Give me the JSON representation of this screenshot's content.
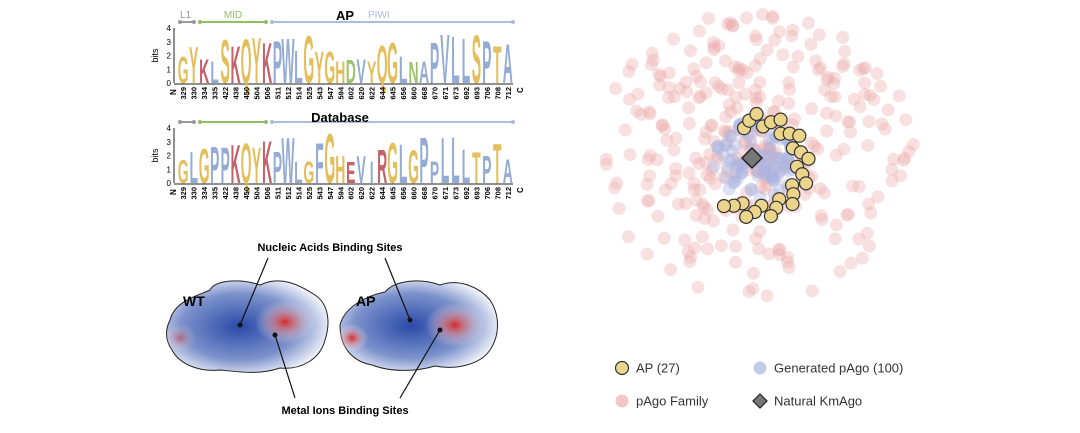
{
  "logos": {
    "y_label": "bits",
    "yticks": [
      0,
      1,
      2,
      3,
      4
    ],
    "n_term": "N",
    "c_term": "C",
    "positions": [
      329,
      330,
      334,
      335,
      422,
      438,
      450,
      504,
      506,
      511,
      512,
      514,
      525,
      543,
      547,
      594,
      602,
      620,
      622,
      644,
      645,
      656,
      660,
      668,
      670,
      671,
      673,
      692,
      693,
      706,
      708,
      712
    ],
    "domains": {
      "l1": "L1",
      "mid": "MID",
      "piwi": "PIWI"
    },
    "panels": [
      {
        "title": "AP",
        "letters": [
          "G",
          "Y",
          "K",
          "L",
          "S",
          "K",
          "Q",
          "Y",
          "K",
          "P",
          "W",
          "L",
          "G",
          "Y",
          "G",
          "H",
          "D",
          "V",
          "Y",
          "Q",
          "G",
          "L",
          "N",
          "A",
          "P",
          "V",
          "L",
          "L",
          "S",
          "P",
          "T",
          "A"
        ]
      },
      {
        "title": "Database",
        "letters": [
          "G",
          "L",
          "G",
          "P",
          "P",
          "K",
          "Q",
          "Y",
          "K",
          "P",
          "W",
          "L",
          "G",
          "F",
          "G",
          "H",
          "E",
          "V",
          "I",
          "R",
          "G",
          "L",
          "G",
          "P",
          "P",
          "L",
          "L",
          "L",
          "T",
          "P",
          "T",
          "A"
        ]
      }
    ]
  },
  "structures": {
    "labels": [
      "WT",
      "AP"
    ],
    "nucleic": "Nucleic Acids Binding Sites",
    "metal": "Metal Ions Binding Sites"
  },
  "legend": [
    {
      "label": "AP (27)",
      "color": "#ecd58a"
    },
    {
      "label": "Generated pAgo (100)",
      "color": "#c3cbe8"
    },
    {
      "label": "pAgo Family",
      "color": "#f4c6c6"
    },
    {
      "label": "Natural KmAgo",
      "color": "#777777"
    }
  ]
}
